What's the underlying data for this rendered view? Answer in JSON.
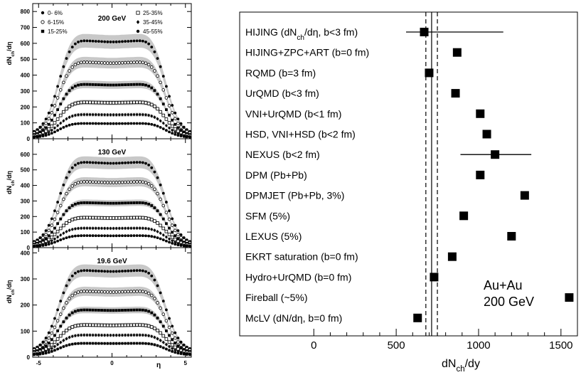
{
  "chart_data": [
    {
      "type": "scatter",
      "title": "200 GeV",
      "xlabel": "",
      "ylabel": "dN_ch/dη",
      "ylim": [
        0,
        850
      ],
      "xlim": [
        -5.4,
        5.4
      ],
      "yticks": [
        "0",
        "100",
        "200",
        "300",
        "400",
        "500",
        "600",
        "700",
        "800"
      ],
      "legend": [
        "0- 6%",
        "6-15%",
        "15-25%",
        "25-35%",
        "35-45%",
        "45-55%"
      ],
      "legend_symbols": [
        "filled-circle",
        "open-circle",
        "filled-square",
        "open-square",
        "filled-diamond",
        "filled-circle"
      ],
      "band_color": "#c8c8c8",
      "series": [
        {
          "name": "0- 6%",
          "plateau": 640,
          "edge": 22
        },
        {
          "name": "6-15%",
          "plateau": 500,
          "edge": 17
        },
        {
          "name": "15-25%",
          "plateau": 355,
          "edge": 13
        },
        {
          "name": "25-35%",
          "plateau": 238,
          "edge": 10
        },
        {
          "name": "35-45%",
          "plateau": 158,
          "edge": 8
        },
        {
          "name": "45-55%",
          "plateau": 100,
          "edge": 6
        }
      ]
    },
    {
      "type": "scatter",
      "title": "130 GeV",
      "xlabel": "",
      "ylabel": "dN_ch/dη",
      "ylim": [
        0,
        700
      ],
      "xlim": [
        -5.4,
        5.4
      ],
      "yticks": [
        "0",
        "100",
        "200",
        "300",
        "400",
        "500",
        "600"
      ],
      "band_color": "#c8c8c8",
      "series": [
        {
          "name": "0- 6%",
          "plateau": 570,
          "edge": 18
        },
        {
          "name": "6-15%",
          "plateau": 440,
          "edge": 14
        },
        {
          "name": "15-25%",
          "plateau": 300,
          "edge": 11
        },
        {
          "name": "25-35%",
          "plateau": 200,
          "edge": 9
        },
        {
          "name": "35-45%",
          "plateau": 130,
          "edge": 7
        },
        {
          "name": "45-55%",
          "plateau": 80,
          "edge": 5
        }
      ]
    },
    {
      "type": "scatter",
      "title": "19.6 GeV",
      "xlabel": "η",
      "ylabel": "dN_ch/dη",
      "ylim": [
        0,
        420
      ],
      "xlim": [
        -5.4,
        5.4
      ],
      "xticks": [
        "-5",
        "0",
        "5"
      ],
      "yticks": [
        "0",
        "100",
        "200",
        "300",
        "400"
      ],
      "band_color": "#c8c8c8",
      "series": [
        {
          "name": "0- 6%",
          "plateau": 345,
          "edge": 20
        },
        {
          "name": "6-15%",
          "plateau": 262,
          "edge": 18
        },
        {
          "name": "15-25%",
          "plateau": 188,
          "edge": 15
        },
        {
          "name": "25-35%",
          "plateau": 128,
          "edge": 12
        },
        {
          "name": "35-45%",
          "plateau": 88,
          "edge": 10
        },
        {
          "name": "45-55%",
          "plateau": 55,
          "edge": 8
        }
      ]
    },
    {
      "type": "scatter",
      "xlabel": "dN_ch/dy",
      "xlim": [
        -450,
        1600
      ],
      "xticks": [
        "0",
        "500",
        "1000",
        "1500"
      ],
      "annotation": [
        "Au+Au",
        "200 GeV"
      ],
      "dashed_lines_x": [
        680,
        750
      ],
      "solid_line_x": 715,
      "categories": [
        "HIJING (dN_ch/dη, b<3 fm)",
        "HIJING+ZPC+ART (b=0 fm)",
        "RQMD (b=3 fm)",
        "UrQMD (b<3 fm)",
        "VNI+UrQMD (b<1 fm)",
        "HSD, VNI+HSD (b<2 fm)",
        "NEXUS (b<2 fm)",
        "DPM (Pb+Pb)",
        "DPMJET (Pb+Pb, 3%)",
        "SFM (5%)",
        "LEXUS (5%)",
        "EKRT saturation (b=0 fm)",
        "Hydro+UrQMD (b=0 fm)",
        "Fireball (~5%)",
        "McLV (dN/dη, b=0 fm)"
      ],
      "values": [
        670,
        870,
        700,
        860,
        1010,
        1050,
        1100,
        1010,
        1280,
        910,
        1200,
        840,
        730,
        1550,
        630
      ],
      "error_ranges": [
        [
          560,
          1150
        ],
        null,
        null,
        null,
        null,
        null,
        [
          890,
          1320
        ],
        null,
        null,
        null,
        null,
        null,
        null,
        null,
        null
      ]
    }
  ]
}
